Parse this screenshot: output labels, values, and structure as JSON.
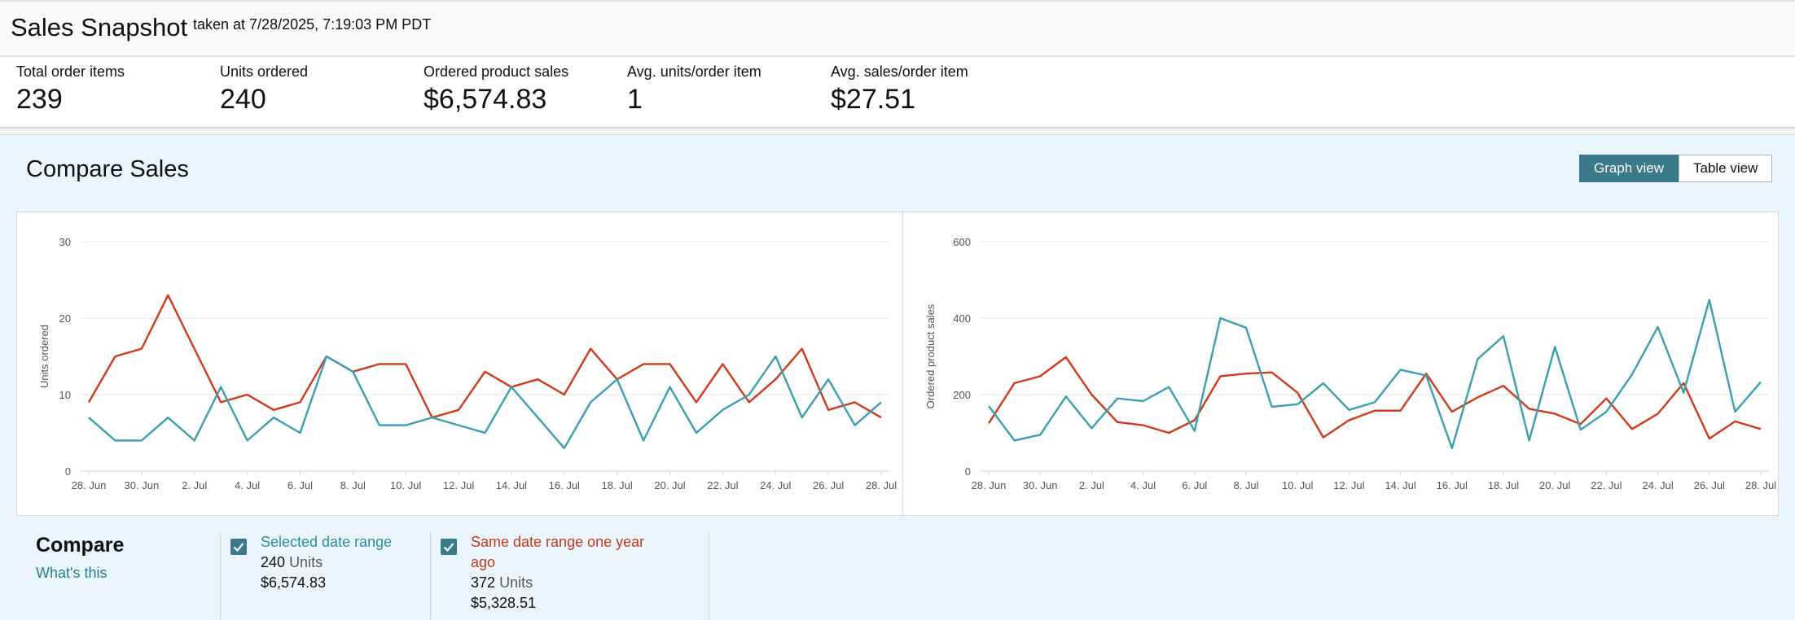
{
  "header": {
    "title": "Sales Snapshot",
    "taken_at": "taken at 7/28/2025, 7:19:03 PM PDT"
  },
  "metrics": [
    {
      "label": "Total order items",
      "value": "239"
    },
    {
      "label": "Units ordered",
      "value": "240"
    },
    {
      "label": "Ordered product sales",
      "value": "$6,574.83"
    },
    {
      "label": "Avg. units/order item",
      "value": "1"
    },
    {
      "label": "Avg. sales/order item",
      "value": "$27.51"
    }
  ],
  "compare": {
    "title": "Compare Sales",
    "graph_view_label": "Graph view",
    "table_view_label": "Table view",
    "legend_title": "Compare",
    "whats_this": "What's this",
    "unit_word": "Units",
    "series": [
      {
        "name": "Selected date range",
        "units": "240",
        "sales": "$6,574.83",
        "color": "#3aa0b0"
      },
      {
        "name": "Same date range one year ago",
        "units": "372",
        "sales": "$5,328.51",
        "color": "#d03a1a"
      }
    ]
  },
  "colors": {
    "current": "#3aa0b0",
    "previous": "#d03a1a",
    "accent": "#3a7a8b",
    "grid": "#e6e6e6"
  },
  "chart_data": [
    {
      "type": "line",
      "ylabel": "Units ordered",
      "ylim": [
        0,
        30
      ],
      "yticks": [
        0,
        10,
        20,
        30
      ],
      "xlabels": [
        "28. Jun",
        "30. Jun",
        "2. Jul",
        "4. Jul",
        "6. Jul",
        "8. Jul",
        "10. Jul",
        "12. Jul",
        "14. Jul",
        "16. Jul",
        "18. Jul",
        "20. Jul",
        "22. Jul",
        "24. Jul",
        "26. Jul",
        "28. Jul"
      ],
      "x": [
        "2025-06-28",
        "2025-06-29",
        "2025-06-30",
        "2025-07-01",
        "2025-07-02",
        "2025-07-03",
        "2025-07-04",
        "2025-07-05",
        "2025-07-06",
        "2025-07-07",
        "2025-07-08",
        "2025-07-09",
        "2025-07-10",
        "2025-07-11",
        "2025-07-12",
        "2025-07-13",
        "2025-07-14",
        "2025-07-15",
        "2025-07-16",
        "2025-07-17",
        "2025-07-18",
        "2025-07-19",
        "2025-07-20",
        "2025-07-21",
        "2025-07-22",
        "2025-07-23",
        "2025-07-24",
        "2025-07-25",
        "2025-07-26",
        "2025-07-27",
        "2025-07-28"
      ],
      "grid": true,
      "series": [
        {
          "name": "Selected date range",
          "values": [
            7,
            4,
            4,
            7,
            4,
            11,
            4,
            7,
            5,
            15,
            13,
            6,
            6,
            7,
            6,
            5,
            11,
            7,
            3,
            9,
            12,
            4,
            11,
            5,
            8,
            10,
            15,
            7,
            12,
            6,
            9
          ]
        },
        {
          "name": "Same date range one year ago",
          "values": [
            9,
            15,
            16,
            23,
            16,
            9,
            10,
            8,
            9,
            15,
            13,
            14,
            14,
            7,
            8,
            13,
            11,
            12,
            10,
            16,
            12,
            14,
            14,
            9,
            14,
            9,
            12,
            16,
            8,
            9,
            7
          ]
        }
      ]
    },
    {
      "type": "line",
      "ylabel": "Ordered product sales",
      "ylim": [
        0,
        600
      ],
      "yticks": [
        0,
        200,
        400,
        600
      ],
      "xlabels": [
        "28. Jun",
        "30. Jun",
        "2. Jul",
        "4. Jul",
        "6. Jul",
        "8. Jul",
        "10. Jul",
        "12. Jul",
        "14. Jul",
        "16. Jul",
        "18. Jul",
        "20. Jul",
        "22. Jul",
        "24. Jul",
        "26. Jul",
        "28. Jul"
      ],
      "x": [
        "2025-06-28",
        "2025-06-29",
        "2025-06-30",
        "2025-07-01",
        "2025-07-02",
        "2025-07-03",
        "2025-07-04",
        "2025-07-05",
        "2025-07-06",
        "2025-07-07",
        "2025-07-08",
        "2025-07-09",
        "2025-07-10",
        "2025-07-11",
        "2025-07-12",
        "2025-07-13",
        "2025-07-14",
        "2025-07-15",
        "2025-07-16",
        "2025-07-17",
        "2025-07-18",
        "2025-07-19",
        "2025-07-20",
        "2025-07-21",
        "2025-07-22",
        "2025-07-23",
        "2025-07-24",
        "2025-07-25",
        "2025-07-26",
        "2025-07-27",
        "2025-07-28"
      ],
      "grid": true,
      "series": [
        {
          "name": "Selected date range",
          "values": [
            170,
            80,
            95,
            195,
            112,
            190,
            183,
            220,
            105,
            400,
            375,
            168,
            175,
            230,
            160,
            180,
            265,
            250,
            60,
            293,
            353,
            80,
            325,
            108,
            155,
            253,
            377,
            205,
            448,
            155,
            233
          ]
        },
        {
          "name": "Same date range one year ago",
          "values": [
            125,
            230,
            248,
            298,
            200,
            128,
            120,
            100,
            133,
            248,
            255,
            258,
            205,
            88,
            133,
            158,
            158,
            255,
            155,
            193,
            223,
            163,
            150,
            123,
            190,
            110,
            150,
            230,
            85,
            130,
            110
          ]
        }
      ]
    }
  ]
}
